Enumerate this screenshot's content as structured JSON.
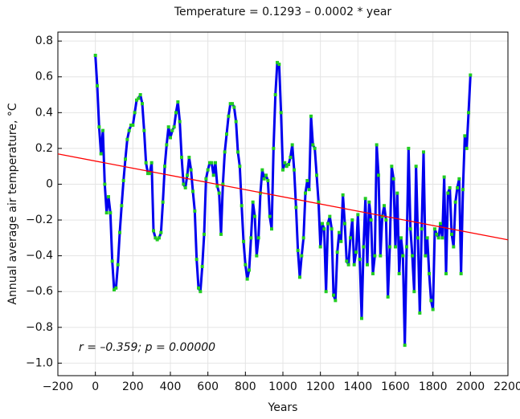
{
  "chart_data": {
    "type": "line",
    "title": "Temperature = 0.1293 – 0.0002 * year",
    "x_label": "Years",
    "y_label": "Annual average air temperature, °C",
    "annotation": "r = –0.359; p = 0.00000",
    "fit": {
      "intercept": 0.1293,
      "slope": -0.0002,
      "color": "#ff0000"
    },
    "xlim": [
      -200,
      2200
    ],
    "ylim": [
      -1.07,
      0.85
    ],
    "xticks": [
      {
        "value": -200,
        "label": "−200"
      },
      0,
      200,
      400,
      600,
      800,
      1000,
      1200,
      1400,
      1600,
      1800,
      2000,
      2200
    ],
    "yticks": [
      {
        "value": -1.0,
        "label": "−1.0"
      },
      {
        "value": -0.8,
        "label": "−0.8"
      },
      {
        "value": -0.6,
        "label": "−0.6"
      },
      {
        "value": -0.4,
        "label": "−0.4"
      },
      {
        "value": -0.2,
        "label": "−0.2"
      },
      0,
      0.2,
      0.4,
      0.6,
      0.8
    ],
    "grid": true,
    "marker_color": "#22cc22",
    "series": [
      {
        "name": "Temperature",
        "color": "#0000ee",
        "x": [
          0,
          10,
          20,
          30,
          40,
          50,
          60,
          70,
          80,
          90,
          100,
          110,
          120,
          130,
          140,
          150,
          160,
          170,
          180,
          190,
          200,
          210,
          220,
          230,
          240,
          250,
          260,
          270,
          280,
          290,
          300,
          310,
          320,
          330,
          340,
          350,
          360,
          370,
          380,
          390,
          400,
          410,
          420,
          430,
          440,
          450,
          460,
          470,
          480,
          490,
          500,
          510,
          520,
          530,
          540,
          550,
          560,
          570,
          580,
          590,
          600,
          610,
          620,
          630,
          640,
          650,
          660,
          670,
          680,
          690,
          700,
          710,
          720,
          730,
          740,
          750,
          760,
          770,
          780,
          790,
          800,
          810,
          820,
          830,
          840,
          850,
          860,
          870,
          880,
          890,
          900,
          910,
          920,
          930,
          940,
          950,
          960,
          970,
          980,
          990,
          1000,
          1010,
          1020,
          1030,
          1040,
          1050,
          1060,
          1070,
          1080,
          1090,
          1100,
          1110,
          1120,
          1130,
          1140,
          1150,
          1160,
          1170,
          1180,
          1190,
          1200,
          1210,
          1220,
          1230,
          1240,
          1250,
          1260,
          1270,
          1280,
          1290,
          1300,
          1310,
          1320,
          1330,
          1340,
          1350,
          1360,
          1370,
          1380,
          1390,
          1400,
          1410,
          1420,
          1430,
          1440,
          1450,
          1460,
          1470,
          1480,
          1490,
          1500,
          1510,
          1520,
          1530,
          1540,
          1550,
          1560,
          1570,
          1580,
          1590,
          1600,
          1610,
          1620,
          1630,
          1640,
          1650,
          1660,
          1670,
          1680,
          1690,
          1700,
          1710,
          1720,
          1730,
          1740,
          1750,
          1760,
          1770,
          1780,
          1790,
          1800,
          1810,
          1820,
          1830,
          1840,
          1850,
          1860,
          1870,
          1880,
          1890,
          1900,
          1910,
          1920,
          1930,
          1940,
          1950,
          1960,
          1970,
          1980,
          1990,
          2000
        ],
        "values": [
          0.72,
          0.55,
          0.32,
          0.17,
          0.3,
          0.0,
          -0.16,
          -0.07,
          -0.16,
          -0.43,
          -0.59,
          -0.58,
          -0.45,
          -0.27,
          -0.12,
          0.02,
          0.14,
          0.25,
          0.3,
          0.33,
          0.33,
          0.4,
          0.47,
          0.48,
          0.5,
          0.45,
          0.3,
          0.12,
          0.06,
          0.06,
          0.12,
          -0.26,
          -0.3,
          -0.31,
          -0.3,
          -0.27,
          -0.1,
          0.1,
          0.22,
          0.32,
          0.26,
          0.3,
          0.32,
          0.4,
          0.46,
          0.35,
          0.15,
          0.0,
          -0.02,
          0.05,
          0.15,
          0.08,
          -0.04,
          -0.15,
          -0.42,
          -0.58,
          -0.6,
          -0.46,
          -0.28,
          0.03,
          0.08,
          0.12,
          0.12,
          0.05,
          0.12,
          -0.01,
          -0.05,
          -0.28,
          0.0,
          0.18,
          0.28,
          0.38,
          0.45,
          0.45,
          0.43,
          0.35,
          0.18,
          0.1,
          -0.12,
          -0.32,
          -0.45,
          -0.53,
          -0.48,
          -0.3,
          -0.1,
          -0.18,
          -0.4,
          -0.3,
          -0.05,
          0.08,
          0.03,
          0.05,
          0.02,
          -0.18,
          -0.25,
          0.2,
          0.5,
          0.68,
          0.67,
          0.4,
          0.08,
          0.12,
          0.1,
          0.11,
          0.15,
          0.22,
          0.08,
          -0.13,
          -0.37,
          -0.52,
          -0.4,
          -0.3,
          -0.05,
          0.02,
          -0.03,
          0.38,
          0.22,
          0.2,
          0.05,
          -0.1,
          -0.35,
          -0.22,
          -0.25,
          -0.6,
          -0.22,
          -0.18,
          -0.25,
          -0.62,
          -0.65,
          -0.38,
          -0.27,
          -0.32,
          -0.06,
          -0.22,
          -0.43,
          -0.45,
          -0.3,
          -0.2,
          -0.45,
          -0.38,
          -0.17,
          -0.42,
          -0.75,
          -0.35,
          -0.08,
          -0.45,
          -0.1,
          -0.2,
          -0.5,
          -0.4,
          0.22,
          0.05,
          -0.4,
          -0.18,
          -0.12,
          -0.2,
          -0.63,
          -0.35,
          0.1,
          0.03,
          -0.35,
          -0.05,
          -0.5,
          -0.3,
          -0.4,
          -0.9,
          -0.35,
          0.2,
          -0.25,
          -0.4,
          -0.6,
          0.1,
          -0.3,
          -0.72,
          -0.25,
          0.18,
          -0.4,
          -0.3,
          -0.5,
          -0.65,
          -0.7,
          -0.25,
          -0.28,
          -0.3,
          -0.22,
          -0.3,
          0.04,
          -0.5,
          -0.05,
          -0.02,
          -0.28,
          -0.35,
          -0.1,
          -0.02,
          0.03,
          -0.5,
          -0.03,
          0.27,
          0.2,
          0.4,
          0.61
        ]
      }
    ]
  }
}
